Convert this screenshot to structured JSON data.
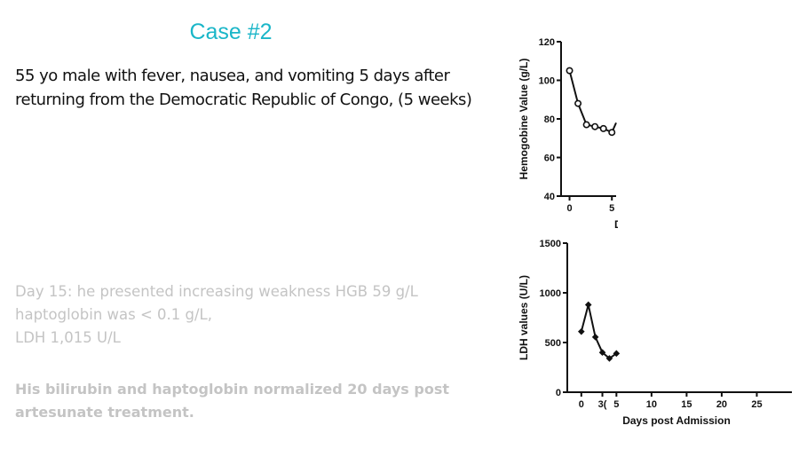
{
  "slide": {
    "title": "Case #2",
    "description": "55 yo male with  fever, nausea, and vomiting 5 days after returning from the Democratic Republic of Congo, (5 weeks)",
    "findings": [
      "Day 15: he presented increasing weakness HGB 59 g/L",
      "haptoglobin was < 0.1 g/L,",
      "LDH 1,015 U/L"
    ],
    "conclusion": "His bilirubin and haptoglobin normalized 20 days post artesunate treatment."
  },
  "colors": {
    "title": "#1ab6c8",
    "body_text": "#111111",
    "faded_text": "#c4c4c4"
  },
  "chart_data": [
    {
      "type": "line",
      "ylabel": "Hemogobine Value (g/L)",
      "xlabel": "D",
      "xlim": [
        -1,
        5.5
      ],
      "ylim": [
        40,
        120
      ],
      "y_ticks": [
        "40",
        "60",
        "80",
        "100",
        "120"
      ],
      "x_ticks": [
        "0",
        "5"
      ],
      "x": [
        0,
        1,
        2,
        3,
        4,
        5,
        5.5
      ],
      "y": [
        105,
        88,
        77,
        76,
        75,
        73,
        78
      ],
      "marker": "circle"
    },
    {
      "type": "line",
      "ylabel": "LDH values (U/L)",
      "xlabel": "Days post Admission",
      "xlim": [
        -2,
        30
      ],
      "ylim": [
        0,
        1500
      ],
      "y_ticks": [
        "0",
        "500",
        "1000",
        "1500"
      ],
      "x_ticks": [
        "0",
        "5",
        "10",
        "15",
        "20",
        "25",
        "3("
      ],
      "x": [
        0,
        1,
        2,
        3,
        4,
        5
      ],
      "y": [
        610,
        880,
        555,
        400,
        340,
        390
      ],
      "marker": "diamond"
    }
  ]
}
